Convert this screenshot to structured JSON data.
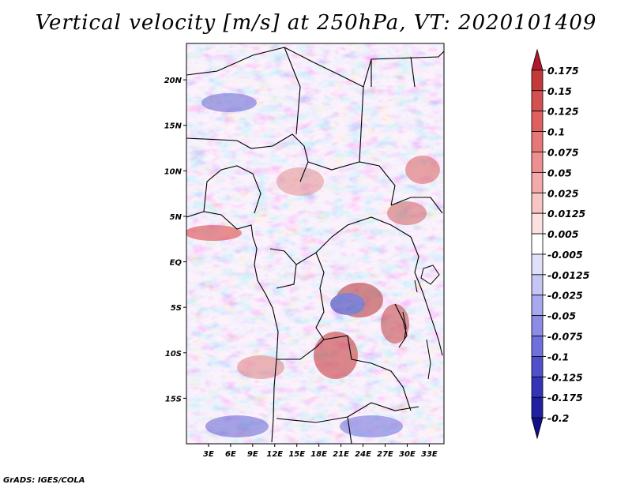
{
  "title": "Vertical velocity [m/s] at 250hPa, VT: 2020101409",
  "credit": "GrADS: IGES/COLA",
  "map": {
    "variable": "Vertical velocity",
    "units": "m/s",
    "level": "250hPa",
    "valid_time": "2020101409",
    "lon_range": [
      0,
      35
    ],
    "lat_range": [
      -20,
      24
    ],
    "lat_labels": [
      "20N",
      "15N",
      "10N",
      "5N",
      "EQ",
      "5S",
      "10S",
      "15S"
    ],
    "lat_values": [
      20,
      15,
      10,
      5,
      0,
      -5,
      -10,
      -15
    ],
    "lon_labels": [
      "3E",
      "6E",
      "9E",
      "12E",
      "15E",
      "18E",
      "21E",
      "24E",
      "27E",
      "30E",
      "33E"
    ],
    "lon_values": [
      3,
      6,
      9,
      12,
      15,
      18,
      21,
      24,
      27,
      30,
      33
    ]
  },
  "colorbar": {
    "levels": [
      "0.175",
      "0.15",
      "0.125",
      "0.1",
      "0.075",
      "0.05",
      "0.025",
      "0.0125",
      "0.005",
      "-0.005",
      "-0.0125",
      "-0.025",
      "-0.05",
      "-0.075",
      "-0.1",
      "-0.125",
      "-0.175",
      "-0.2"
    ],
    "colors": [
      "#b2182b",
      "#c33a3a",
      "#d55050",
      "#e06060",
      "#e87878",
      "#ef9090",
      "#f4aaaa",
      "#f8c4c4",
      "#fde0e0",
      "#ffffff",
      "#e0e0fa",
      "#c6c6f4",
      "#a8a8ee",
      "#8c8ce6",
      "#7070dc",
      "#5050cc",
      "#3434b8",
      "#2020a0",
      "#10108a"
    ]
  }
}
